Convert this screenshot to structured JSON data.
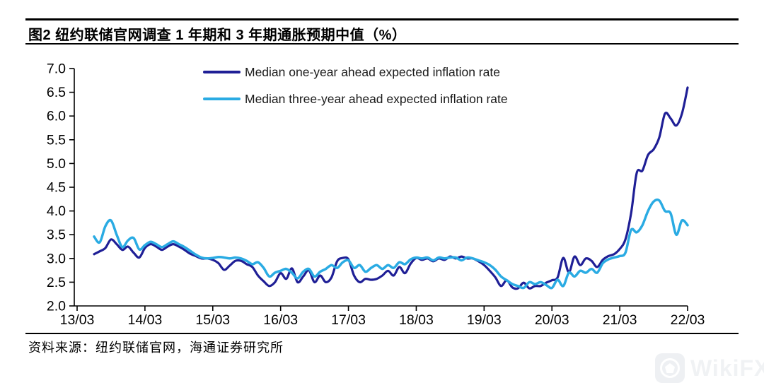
{
  "header": {
    "title": "图2  纽约联储官网调查 1 年期和 3 年期通胀预期中值（%）"
  },
  "footer": {
    "source": "资料来源：纽约联储官网，海通证券研究所"
  },
  "watermark": {
    "text": "WikiFX",
    "icon": "wikifx-camera-logo"
  },
  "chart_data": {
    "type": "line",
    "title": "图2 纽约联储官网调查1年期和3年期通胀预期中值（%）",
    "xlabel": "",
    "ylabel": "",
    "ylim": [
      2.0,
      7.0
    ],
    "y_tick_step": 0.5,
    "y_tick_labels": [
      "2.0",
      "2.5",
      "3.0",
      "3.5",
      "4.0",
      "4.5",
      "5.0",
      "5.5",
      "6.0",
      "6.5",
      "7.0"
    ],
    "x_tick_labels": [
      "13/03",
      "14/03",
      "15/03",
      "16/03",
      "17/03",
      "18/03",
      "19/03",
      "20/03",
      "21/03",
      "22/03"
    ],
    "x_start": "2013-06",
    "x_end": "2022-03",
    "frequency": "monthly",
    "grid": false,
    "legend_position": "top-inside",
    "series": [
      {
        "name": "Median one-year ahead expected inflation rate",
        "color": "#1f1f96",
        "values": [
          3.09,
          3.15,
          3.22,
          3.4,
          3.3,
          3.18,
          3.25,
          3.12,
          3.02,
          3.22,
          3.3,
          3.25,
          3.18,
          3.25,
          3.3,
          3.25,
          3.18,
          3.1,
          3.05,
          3.0,
          3.0,
          2.97,
          2.9,
          2.76,
          2.85,
          2.95,
          2.95,
          2.88,
          2.82,
          2.64,
          2.52,
          2.42,
          2.5,
          2.69,
          2.57,
          2.79,
          2.5,
          2.62,
          2.75,
          2.5,
          2.64,
          2.5,
          2.6,
          2.94,
          3.01,
          2.98,
          2.64,
          2.5,
          2.57,
          2.55,
          2.57,
          2.64,
          2.74,
          2.64,
          2.82,
          2.69,
          2.89,
          3.01,
          2.97,
          3.0,
          2.94,
          3.0,
          2.97,
          3.04,
          3.0,
          3.04,
          3.0,
          3.0,
          2.94,
          2.86,
          2.74,
          2.6,
          2.42,
          2.54,
          2.39,
          2.37,
          2.49,
          2.37,
          2.42,
          2.42,
          2.49,
          2.54,
          2.6,
          3.01,
          2.71,
          3.04,
          2.86,
          3.0,
          2.95,
          2.82,
          2.97,
          3.05,
          3.09,
          3.2,
          3.4,
          3.95,
          4.8,
          4.85,
          5.18,
          5.3,
          5.55,
          6.05,
          5.95,
          5.8,
          6.05,
          6.6
        ]
      },
      {
        "name": "Median three-year ahead expected inflation rate",
        "color": "#2aabe3",
        "values": [
          3.46,
          3.34,
          3.68,
          3.8,
          3.5,
          3.24,
          3.38,
          3.43,
          3.19,
          3.28,
          3.35,
          3.3,
          3.24,
          3.3,
          3.36,
          3.3,
          3.24,
          3.16,
          3.08,
          3.02,
          3.0,
          3.01,
          3.03,
          3.02,
          3.0,
          3.02,
          3.0,
          2.95,
          2.88,
          2.92,
          2.8,
          2.62,
          2.7,
          2.74,
          2.78,
          2.7,
          2.58,
          2.72,
          2.78,
          2.62,
          2.72,
          2.78,
          2.86,
          2.8,
          2.92,
          2.96,
          2.8,
          2.86,
          2.72,
          2.8,
          2.86,
          2.78,
          2.86,
          2.8,
          2.92,
          2.88,
          2.98,
          3.02,
          3.0,
          3.02,
          2.96,
          3.02,
          3.0,
          3.02,
          3.02,
          2.96,
          3.02,
          3.0,
          2.96,
          2.92,
          2.86,
          2.76,
          2.62,
          2.54,
          2.46,
          2.42,
          2.38,
          2.5,
          2.46,
          2.5,
          2.44,
          2.38,
          2.55,
          2.42,
          2.7,
          2.62,
          2.74,
          2.7,
          2.78,
          2.7,
          2.9,
          2.98,
          3.02,
          3.05,
          3.12,
          3.6,
          3.55,
          3.7,
          4.0,
          4.2,
          4.22,
          4.0,
          3.95,
          3.5,
          3.8,
          3.7
        ]
      }
    ]
  }
}
